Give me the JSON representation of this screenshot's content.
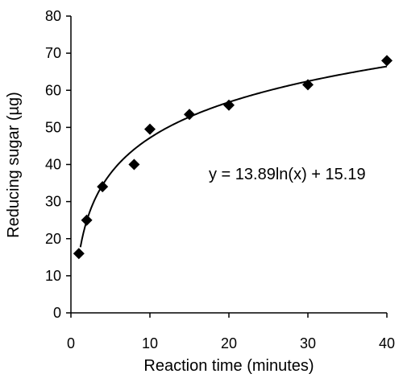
{
  "chart_data": {
    "type": "scatter",
    "title": "",
    "xlabel": "Reaction time (minutes)",
    "ylabel": "Reducing sugar (µg)",
    "xlim": [
      0,
      40
    ],
    "ylim": [
      0,
      80
    ],
    "xticks": [
      "0",
      "10",
      "20",
      "30",
      "40"
    ],
    "yticks": [
      "0",
      "10",
      "20",
      "30",
      "40",
      "50",
      "60",
      "70",
      "80"
    ],
    "grid": false,
    "legend": "none",
    "series": [
      {
        "x": [
          1,
          2,
          4,
          8,
          10,
          15,
          20,
          30,
          40
        ],
        "y": [
          16,
          25,
          34,
          40,
          49.5,
          53.5,
          56,
          61.5,
          68
        ]
      }
    ],
    "trendline": {
      "type": "logarithmic",
      "a": 13.89,
      "b": 15.19,
      "x_range": [
        1.2,
        40
      ]
    },
    "annotation": "y = 13.89ln(x) + 15.19",
    "colors": {
      "marker": "#000000",
      "line": "#000000"
    }
  }
}
